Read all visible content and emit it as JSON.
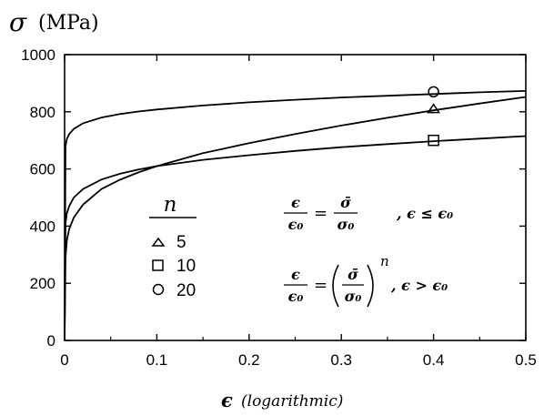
{
  "chart_data": {
    "type": "line",
    "ylabel_symbol": "σ",
    "ylabel_unit": "(MPa)",
    "xlabel_symbol": "ϵ",
    "xlabel_note": "(logarithmic)",
    "xlim": [
      0,
      0.5
    ],
    "ylim": [
      0,
      1000
    ],
    "xticks": [
      0,
      0.1,
      0.2,
      0.3,
      0.4,
      0.5
    ],
    "xtick_labels": [
      "0",
      "0.1",
      "0.2",
      "0.3",
      "0.4",
      "0.5"
    ],
    "yticks": [
      0,
      200,
      400,
      600,
      800,
      1000
    ],
    "ytick_labels": [
      "0",
      "200",
      "400",
      "600",
      "800",
      "1000"
    ],
    "grid": false,
    "legend": {
      "title": "n",
      "entries": [
        {
          "marker": "triangle",
          "label": "5"
        },
        {
          "marker": "square",
          "label": "10"
        },
        {
          "marker": "circle",
          "label": "20"
        }
      ]
    },
    "series": [
      {
        "marker": "triangle",
        "x": [
          0,
          0.001,
          0.0025,
          0.005,
          0.01,
          0.02,
          0.04,
          0.06,
          0.08,
          0.1,
          0.15,
          0.2,
          0.25,
          0.3,
          0.35,
          0.4,
          0.45,
          0.5
        ],
        "y": [
          0,
          290,
          350,
          390,
          430,
          475,
          530,
          562,
          588,
          610,
          655,
          690,
          722,
          752,
          779,
          805,
          829,
          852
        ]
      },
      {
        "marker": "square",
        "x": [
          0,
          0.001,
          0.0025,
          0.005,
          0.01,
          0.02,
          0.04,
          0.06,
          0.08,
          0.1,
          0.15,
          0.2,
          0.25,
          0.3,
          0.35,
          0.4,
          0.45,
          0.5
        ],
        "y": [
          0,
          410,
          445,
          470,
          500,
          530,
          563,
          583,
          598,
          610,
          632,
          648,
          663,
          676,
          687,
          697,
          706,
          715
        ]
      },
      {
        "marker": "circle",
        "x": [
          0,
          0.001,
          0.0025,
          0.005,
          0.01,
          0.02,
          0.04,
          0.06,
          0.08,
          0.1,
          0.15,
          0.2,
          0.25,
          0.3,
          0.35,
          0.4,
          0.45,
          0.5
        ],
        "y": [
          0,
          680,
          705,
          722,
          740,
          760,
          780,
          792,
          801,
          808,
          822,
          833,
          842,
          850,
          856,
          862,
          868,
          873
        ]
      }
    ],
    "markers": [
      {
        "marker": "circle",
        "x": 0.4,
        "y": 870
      },
      {
        "marker": "triangle",
        "x": 0.4,
        "y": 810
      },
      {
        "marker": "square",
        "x": 0.4,
        "y": 700
      }
    ],
    "equations": {
      "eq1_num": "ϵ",
      "eq1_den": "ϵ₀",
      "eq1_rhs_num": "σ̄",
      "eq1_rhs_den": "σ₀",
      "eq1_cond": ",  ϵ ≤ ϵ₀",
      "eq2_num": "ϵ",
      "eq2_den": "ϵ₀",
      "eq2_rhs_num": "σ̄",
      "eq2_rhs_den": "σ₀",
      "eq2_exp": "n",
      "eq2_cond": ",  ϵ > ϵ₀"
    }
  }
}
